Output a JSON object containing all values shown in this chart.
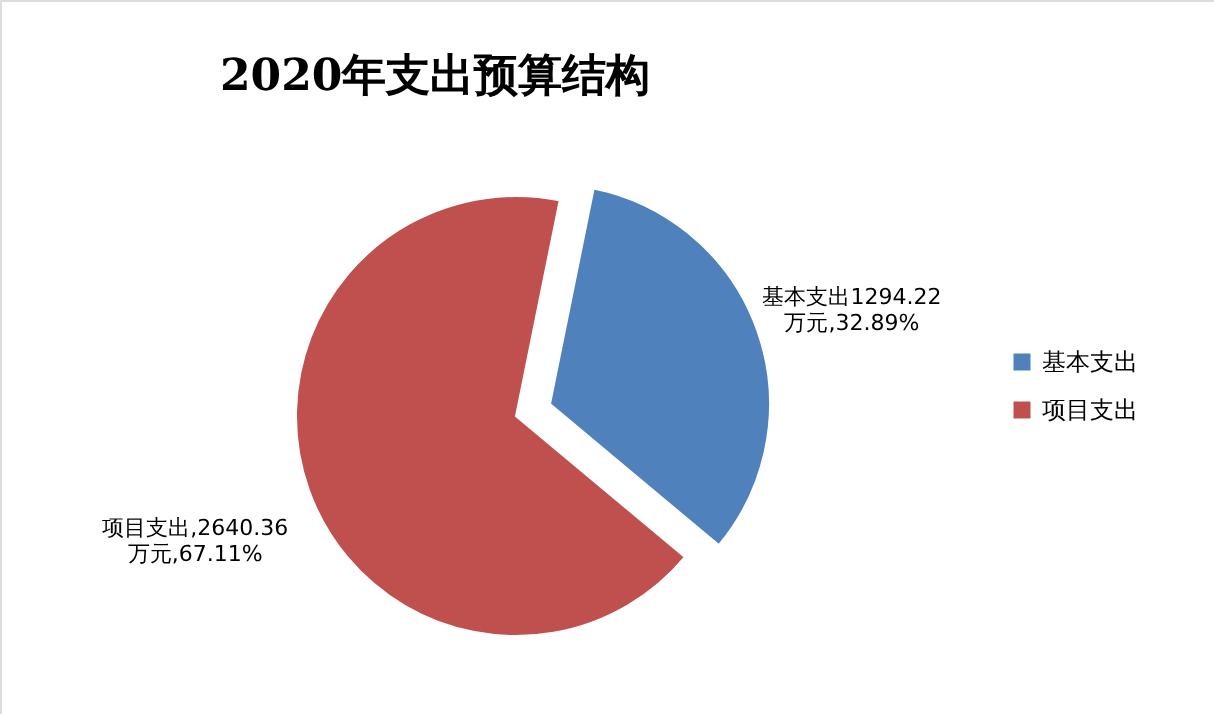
{
  "chart_data": {
    "type": "pie",
    "title": "2020年支出预算结构",
    "categories": [
      "基本支出",
      "项目支出"
    ],
    "values": [
      1294.22,
      2640.36
    ],
    "colors": [
      "#4f81bd",
      "#c0504d"
    ],
    "value_labels": [
      "基本支出1294.22\n万元,32.89%",
      "项目支出,2640.36\n万元,67.11%"
    ],
    "legend": "right"
  }
}
